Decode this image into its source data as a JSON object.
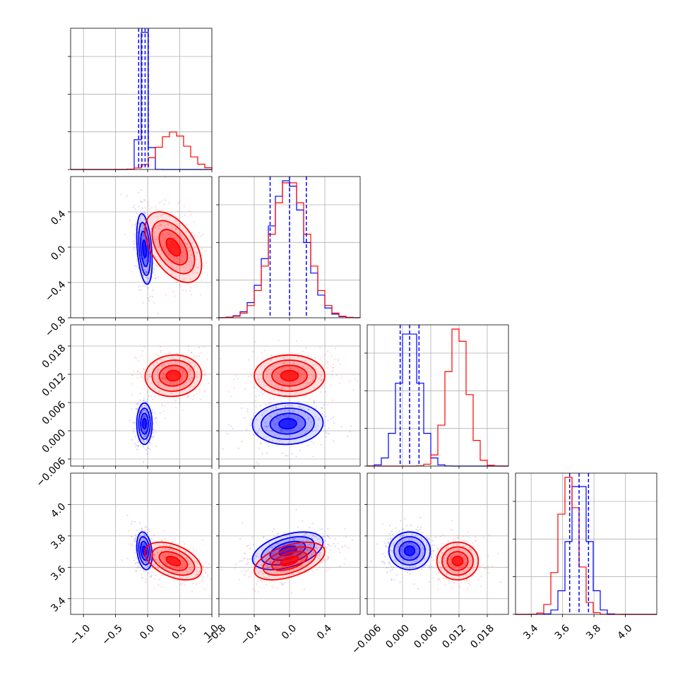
{
  "chart_data": {
    "type": "corner",
    "title": "",
    "parameters": [
      {
        "range": [
          -1.2,
          1.0
        ],
        "ticks": [
          -1.0,
          -0.5,
          0.0,
          0.5,
          1.0
        ],
        "tick_labels": [
          "−1.0",
          "−0.5",
          "0.0",
          "0.5",
          "1.0"
        ]
      },
      {
        "range": [
          -0.8,
          0.8
        ],
        "ticks": [
          -0.8,
          -0.4,
          0.0,
          0.4
        ],
        "tick_labels": [
          "−0.8",
          "−0.4",
          "0.0",
          "0.4"
        ]
      },
      {
        "range": [
          -0.0075,
          0.0225
        ],
        "ticks": [
          -0.006,
          0.0,
          0.006,
          0.012,
          0.018
        ],
        "tick_labels": [
          "−0.006",
          "0.000",
          "0.006",
          "0.012",
          "0.018"
        ]
      },
      {
        "range": [
          3.3,
          4.2
        ],
        "ticks": [
          3.4,
          3.6,
          3.8,
          4.0
        ],
        "tick_labels": [
          "3.4",
          "3.6",
          "3.8",
          "4.0"
        ]
      }
    ],
    "series": [
      {
        "color": "#0000ff",
        "params": [
          {
            "mean": -0.05,
            "sd": 0.06
          },
          {
            "mean": -0.02,
            "sd": 0.2
          },
          {
            "mean": 0.0015,
            "sd": 0.0022
          },
          {
            "mean": 3.705,
            "sd": 0.06
          }
        ],
        "quantile_lines": [
          [
            -0.14,
            -0.09,
            -0.04,
            0.01
          ],
          [
            -0.22,
            0.0,
            0.19
          ],
          [
            -0.0005,
            0.0015,
            0.0035
          ],
          [
            3.645,
            3.705,
            3.765
          ]
        ]
      },
      {
        "color": "#ff0000",
        "params": [
          {
            "mean": 0.4,
            "sd": 0.22
          },
          {
            "mean": 0.0,
            "sd": 0.2
          },
          {
            "mean": 0.0117,
            "sd": 0.0022
          },
          {
            "mean": 3.64,
            "sd": 0.06
          }
        ],
        "quantile_lines": []
      }
    ],
    "grid": true,
    "legend": "none"
  }
}
